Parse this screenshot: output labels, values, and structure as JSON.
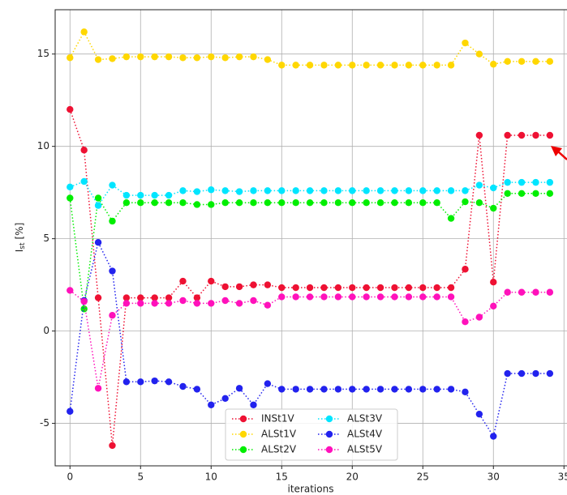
{
  "chart_data": {
    "type": "line",
    "xlabel": "iterations",
    "ylabel": [
      "I",
      "st",
      "[%]"
    ],
    "x": [
      0,
      1,
      2,
      3,
      4,
      5,
      6,
      7,
      8,
      9,
      10,
      11,
      12,
      13,
      14,
      15,
      16,
      17,
      18,
      19,
      20,
      21,
      22,
      23,
      24,
      25,
      26,
      27,
      28,
      29,
      30,
      31,
      32,
      33,
      34
    ],
    "xlim": [
      -1.05,
      35.7
    ],
    "xticks": [
      0,
      5,
      10,
      15,
      20,
      25,
      30,
      35
    ],
    "ylim": [
      -7.3,
      17.4
    ],
    "yticks": [
      -5,
      0,
      5,
      10,
      15
    ],
    "grid": true,
    "legend_position": "lower center",
    "legend_columns": 2,
    "series": [
      {
        "name": "INSt1V",
        "color": "#ee1133",
        "values": [
          12.0,
          9.8,
          1.8,
          -6.2,
          1.8,
          1.8,
          1.8,
          1.8,
          2.7,
          1.8,
          2.7,
          2.4,
          2.4,
          2.5,
          2.5,
          2.35,
          2.35,
          2.35,
          2.35,
          2.35,
          2.35,
          2.35,
          2.35,
          2.35,
          2.35,
          2.35,
          2.35,
          2.35,
          3.35,
          10.6,
          2.65,
          10.6,
          10.6,
          10.6,
          10.6
        ]
      },
      {
        "name": "ALSt1V",
        "color": "#ffd700",
        "values": [
          14.8,
          16.2,
          14.7,
          14.75,
          14.85,
          14.85,
          14.85,
          14.85,
          14.8,
          14.8,
          14.85,
          14.8,
          14.85,
          14.85,
          14.7,
          14.4,
          14.4,
          14.4,
          14.4,
          14.4,
          14.4,
          14.4,
          14.4,
          14.4,
          14.4,
          14.4,
          14.4,
          14.4,
          15.6,
          15.0,
          14.45,
          14.6,
          14.6,
          14.6,
          14.6
        ]
      },
      {
        "name": "ALSt2V",
        "color": "#00ee00",
        "values": [
          7.2,
          1.2,
          7.2,
          5.95,
          6.95,
          6.95,
          6.95,
          6.95,
          6.95,
          6.85,
          6.85,
          6.95,
          6.95,
          6.95,
          6.95,
          6.95,
          6.95,
          6.95,
          6.95,
          6.95,
          6.95,
          6.95,
          6.95,
          6.95,
          6.95,
          6.95,
          6.95,
          6.1,
          7.0,
          6.95,
          6.65,
          7.45,
          7.45,
          7.45,
          7.45
        ]
      },
      {
        "name": "ALSt3V",
        "color": "#00e5ff",
        "values": [
          7.8,
          8.1,
          6.8,
          7.9,
          7.35,
          7.35,
          7.35,
          7.35,
          7.6,
          7.55,
          7.65,
          7.6,
          7.55,
          7.6,
          7.6,
          7.6,
          7.6,
          7.6,
          7.6,
          7.6,
          7.6,
          7.6,
          7.6,
          7.6,
          7.6,
          7.6,
          7.6,
          7.6,
          7.6,
          7.9,
          7.75,
          8.05,
          8.05,
          8.05,
          8.05
        ]
      },
      {
        "name": "ALSt4V",
        "color": "#2222ee",
        "values": [
          -4.35,
          1.65,
          4.8,
          3.25,
          -2.75,
          -2.75,
          -2.7,
          -2.75,
          -3.0,
          -3.15,
          -4.0,
          -3.65,
          -3.1,
          -4.0,
          -2.85,
          -3.15,
          -3.15,
          -3.15,
          -3.15,
          -3.15,
          -3.15,
          -3.15,
          -3.15,
          -3.15,
          -3.15,
          -3.15,
          -3.15,
          -3.15,
          -3.3,
          -4.5,
          -5.7,
          -2.3,
          -2.3,
          -2.3,
          -2.3
        ]
      },
      {
        "name": "ALSt5V",
        "color": "#ff11bb",
        "values": [
          2.2,
          1.6,
          -3.1,
          0.85,
          1.5,
          1.5,
          1.5,
          1.5,
          1.65,
          1.5,
          1.5,
          1.65,
          1.5,
          1.65,
          1.4,
          1.85,
          1.85,
          1.85,
          1.85,
          1.85,
          1.85,
          1.85,
          1.85,
          1.85,
          1.85,
          1.85,
          1.85,
          1.85,
          0.5,
          0.75,
          1.35,
          2.1,
          2.1,
          2.1,
          2.1
        ]
      }
    ]
  }
}
